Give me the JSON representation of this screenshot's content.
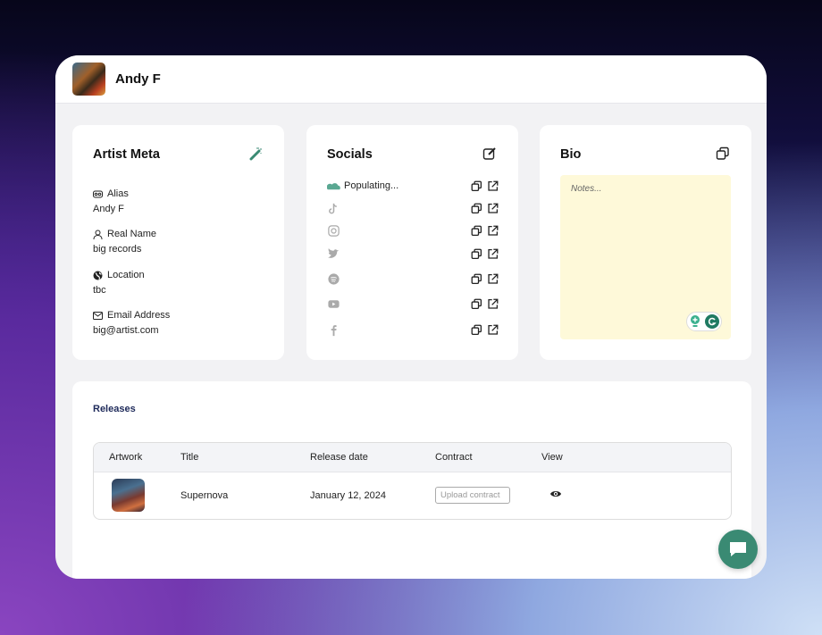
{
  "header": {
    "artist_name": "Andy F"
  },
  "artist_meta": {
    "title": "Artist Meta",
    "fields": [
      {
        "label": "Alias",
        "value": "Andy F",
        "icon": "mask-icon"
      },
      {
        "label": "Real Name",
        "value": "big records",
        "icon": "user-icon"
      },
      {
        "label": "Location",
        "value": "tbc",
        "icon": "globe-icon"
      },
      {
        "label": "Email Address",
        "value": "big@artist.com",
        "icon": "mail-icon"
      }
    ]
  },
  "socials": {
    "title": "Socials",
    "items": [
      {
        "platform": "soundcloud",
        "text": "Populating..."
      },
      {
        "platform": "tiktok",
        "text": ""
      },
      {
        "platform": "instagram",
        "text": ""
      },
      {
        "platform": "twitter",
        "text": ""
      },
      {
        "platform": "spotify",
        "text": ""
      },
      {
        "platform": "youtube",
        "text": ""
      },
      {
        "platform": "facebook",
        "text": ""
      }
    ]
  },
  "bio": {
    "title": "Bio",
    "placeholder": "Notes..."
  },
  "releases": {
    "title": "Releases",
    "columns": [
      "Artwork",
      "Title",
      "Release date",
      "Contract",
      "View"
    ],
    "rows": [
      {
        "title": "Supernova",
        "release_date": "January 12, 2024",
        "contract_placeholder": "Upload contract"
      }
    ]
  },
  "colors": {
    "accent": "#3a8a73",
    "notes_bg": "#fef9d9",
    "releases_title": "#1e2a5a"
  }
}
